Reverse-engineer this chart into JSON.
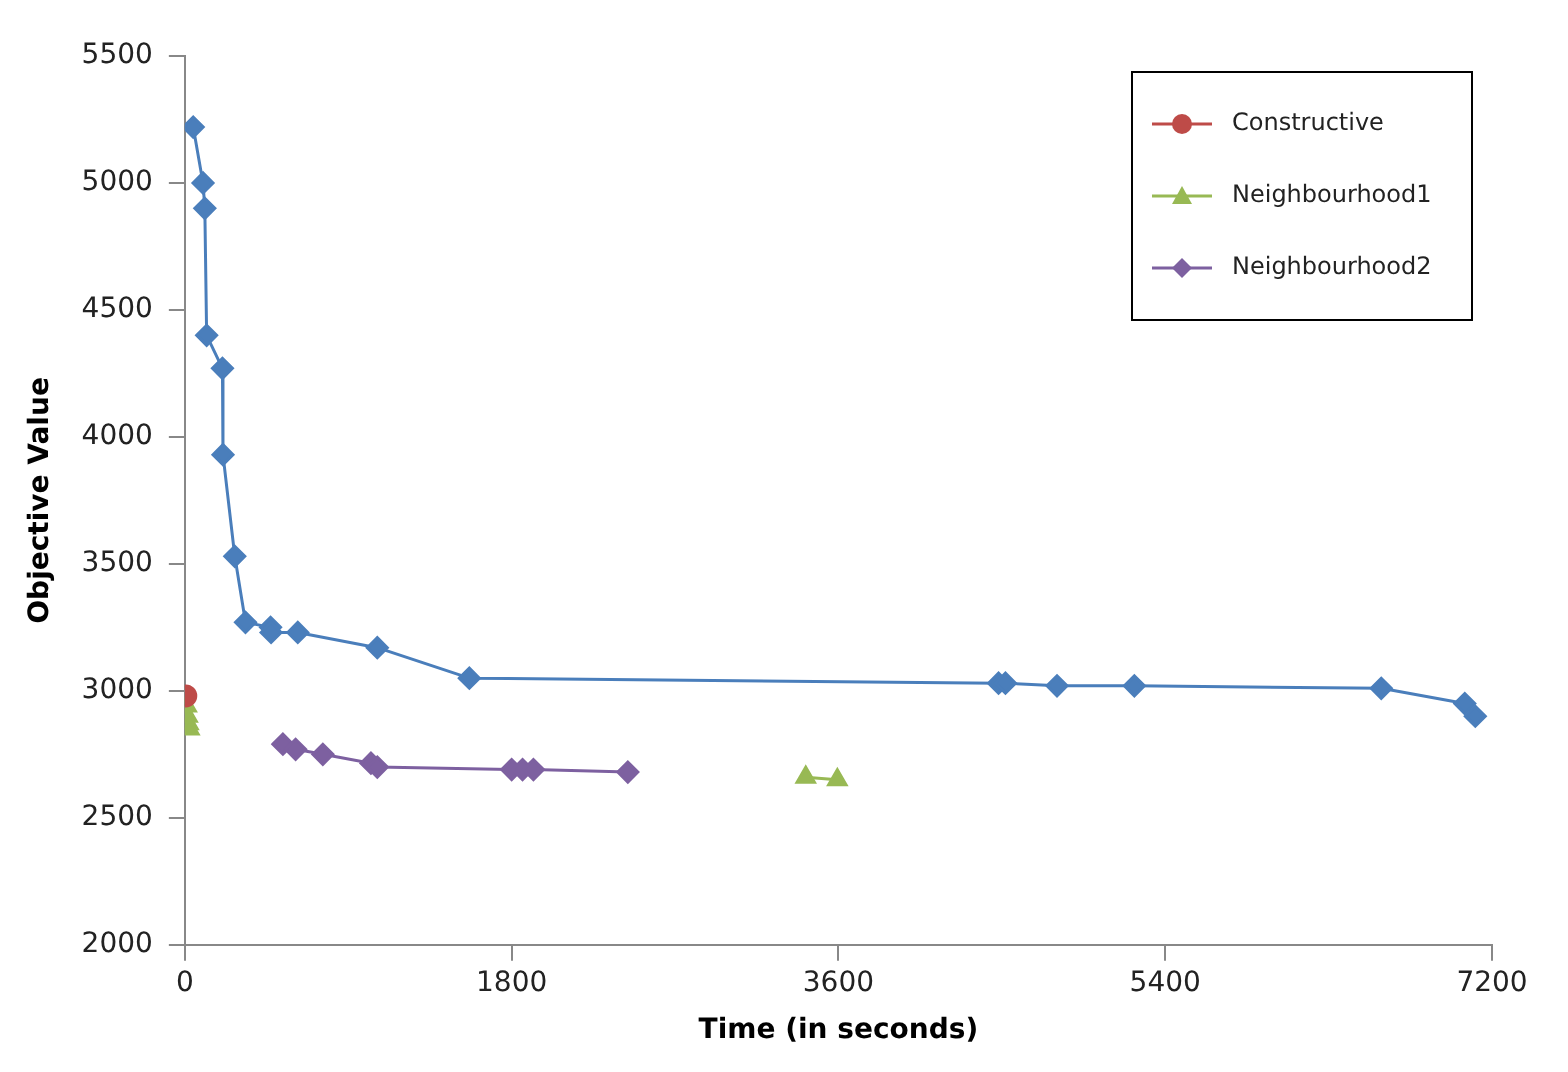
{
  "chart_data": {
    "type": "line",
    "xlabel": "Time (in seconds)",
    "ylabel": "Objective Value",
    "xlim": [
      0,
      7200
    ],
    "xticks": [
      0,
      1800,
      3600,
      5400,
      7200
    ],
    "ylim": [
      2000,
      5500
    ],
    "yticks": [
      2000,
      2500,
      3000,
      3500,
      4000,
      4500,
      5000,
      5500
    ],
    "grid": false,
    "legend": "top right",
    "marker": "diamond",
    "series": [
      {
        "color": "#4a7ebb",
        "x": [
          46,
          100,
          110,
          120,
          207,
          210,
          275,
          334,
          472,
          475,
          622,
          1060,
          1567,
          4482,
          4520,
          4804,
          5230,
          6590,
          7050,
          7108
        ],
        "values": [
          5220,
          5000,
          4900,
          4400,
          4270,
          3930,
          3530,
          3270,
          3250,
          3230,
          3230,
          3170,
          3050,
          3030,
          3030,
          3020,
          3020,
          3010,
          2950,
          2900
        ]
      },
      {
        "name": "Constructive",
        "color": "#be4b48",
        "marker": "circle",
        "x": [
          5
        ],
        "values": [
          2980
        ]
      },
      {
        "name": "Neighbourhood1",
        "color": "#98b954",
        "marker": "triangle",
        "x": [
          10,
          15,
          20,
          25,
          1000,
          3420,
          3594
        ],
        "values": [
          2940,
          2900,
          2870,
          2850,
          null,
          2660,
          2650
        ]
      },
      {
        "name": "Neighbourhood2",
        "color": "#7d60a0",
        "x": [
          540,
          610,
          760,
          1025,
          1060,
          1800,
          1860,
          1920,
          2440
        ],
        "values": [
          2790,
          2770,
          2750,
          2715,
          2700,
          2690,
          2690,
          2690,
          2680
        ]
      }
    ]
  }
}
